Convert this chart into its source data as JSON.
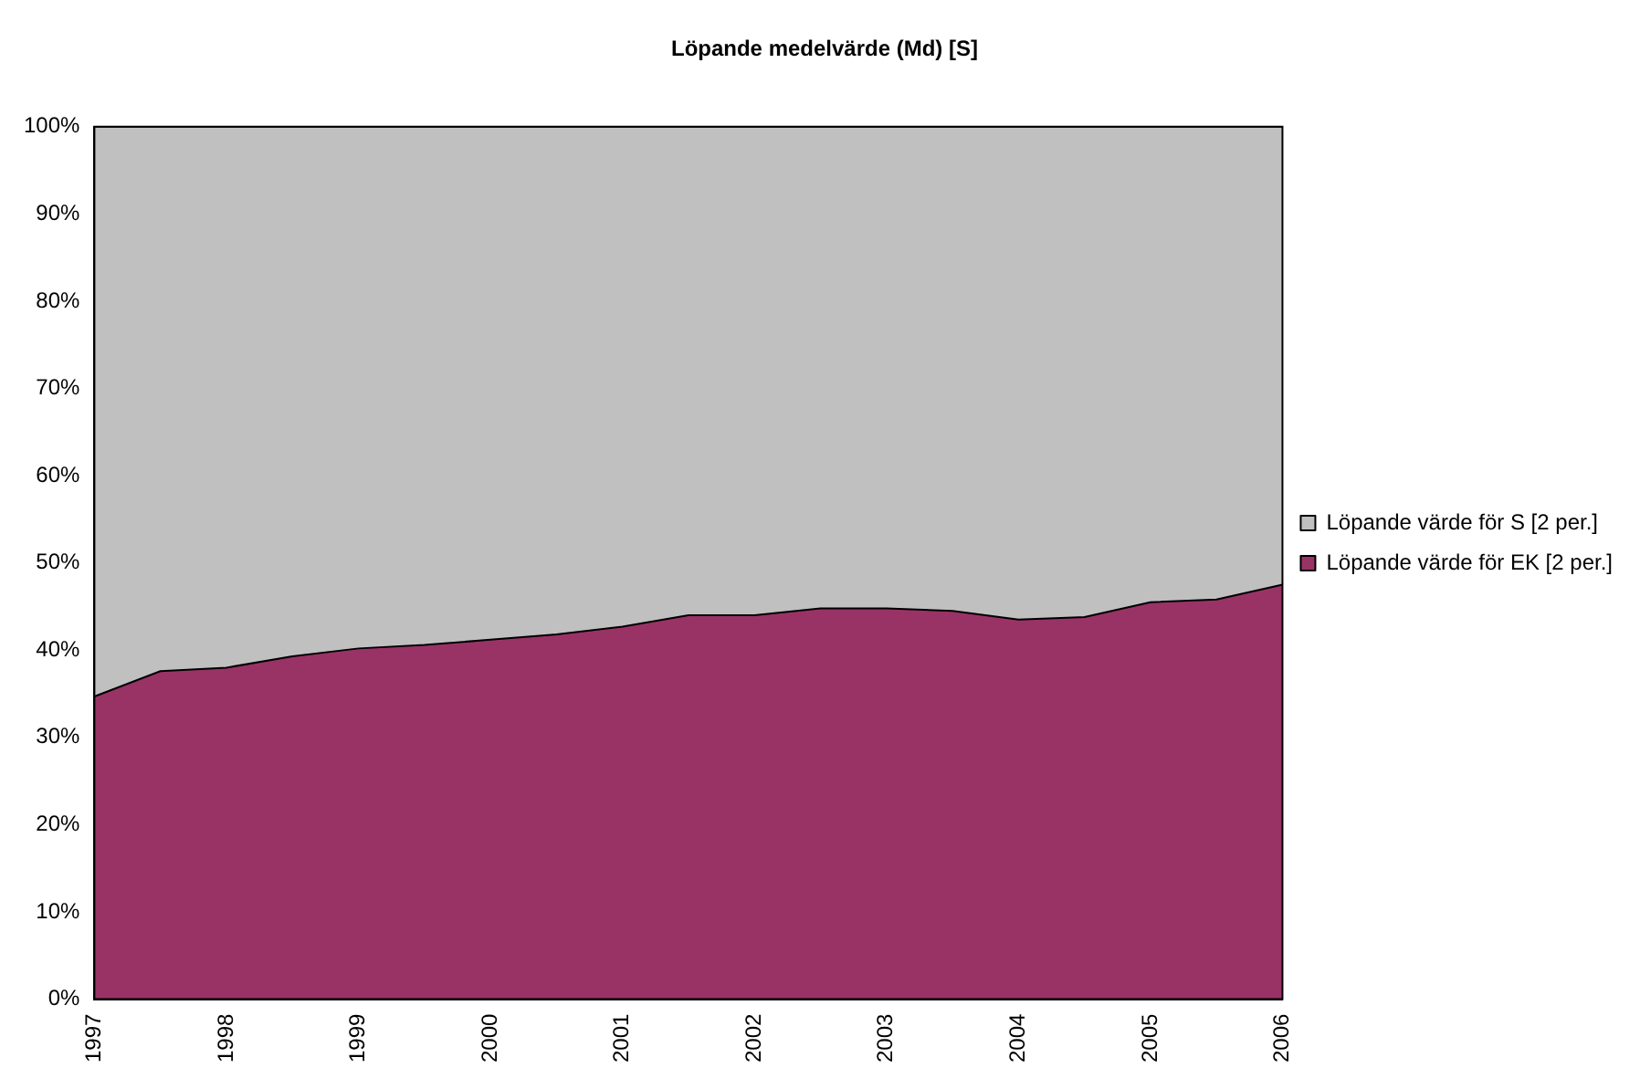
{
  "chart_data": {
    "type": "area",
    "stacked": true,
    "title": "Löpande medelvärde (Md) [S]",
    "categories": [
      "1997",
      null,
      "1998",
      null,
      "1999",
      null,
      "2000",
      null,
      "2001",
      null,
      "2002",
      null,
      "2003",
      null,
      "2004",
      null,
      "2005",
      null,
      "2006"
    ],
    "series": [
      {
        "name": "Löpande värde för EK [2 per.]",
        "color": "#993366",
        "values": [
          34.7,
          37.6,
          38.0,
          39.3,
          40.2,
          40.6,
          41.2,
          41.8,
          42.7,
          44.0,
          44.0,
          44.8,
          44.8,
          44.5,
          43.5,
          43.8,
          45.5,
          45.8,
          47.5
        ]
      },
      {
        "name": "Löpande värde för S [2 per.]",
        "color": "#c0c0c0",
        "values": [
          65.3,
          62.4,
          62.0,
          60.7,
          59.8,
          59.4,
          58.8,
          58.2,
          57.3,
          56.0,
          56.0,
          55.2,
          55.2,
          55.5,
          56.5,
          56.2,
          54.5,
          54.2,
          52.5
        ]
      }
    ],
    "ylim": [
      0,
      100
    ],
    "yticks": [
      {
        "value": 0,
        "label": "0%"
      },
      {
        "value": 10,
        "label": "10%"
      },
      {
        "value": 20,
        "label": "20%"
      },
      {
        "value": 30,
        "label": "30%"
      },
      {
        "value": 40,
        "label": "40%"
      },
      {
        "value": 50,
        "label": "50%"
      },
      {
        "value": 60,
        "label": "60%"
      },
      {
        "value": 70,
        "label": "70%"
      },
      {
        "value": 80,
        "label": "80%"
      },
      {
        "value": 90,
        "label": "90%"
      },
      {
        "value": 100,
        "label": "100%"
      }
    ],
    "grid": false,
    "legend": "right"
  }
}
